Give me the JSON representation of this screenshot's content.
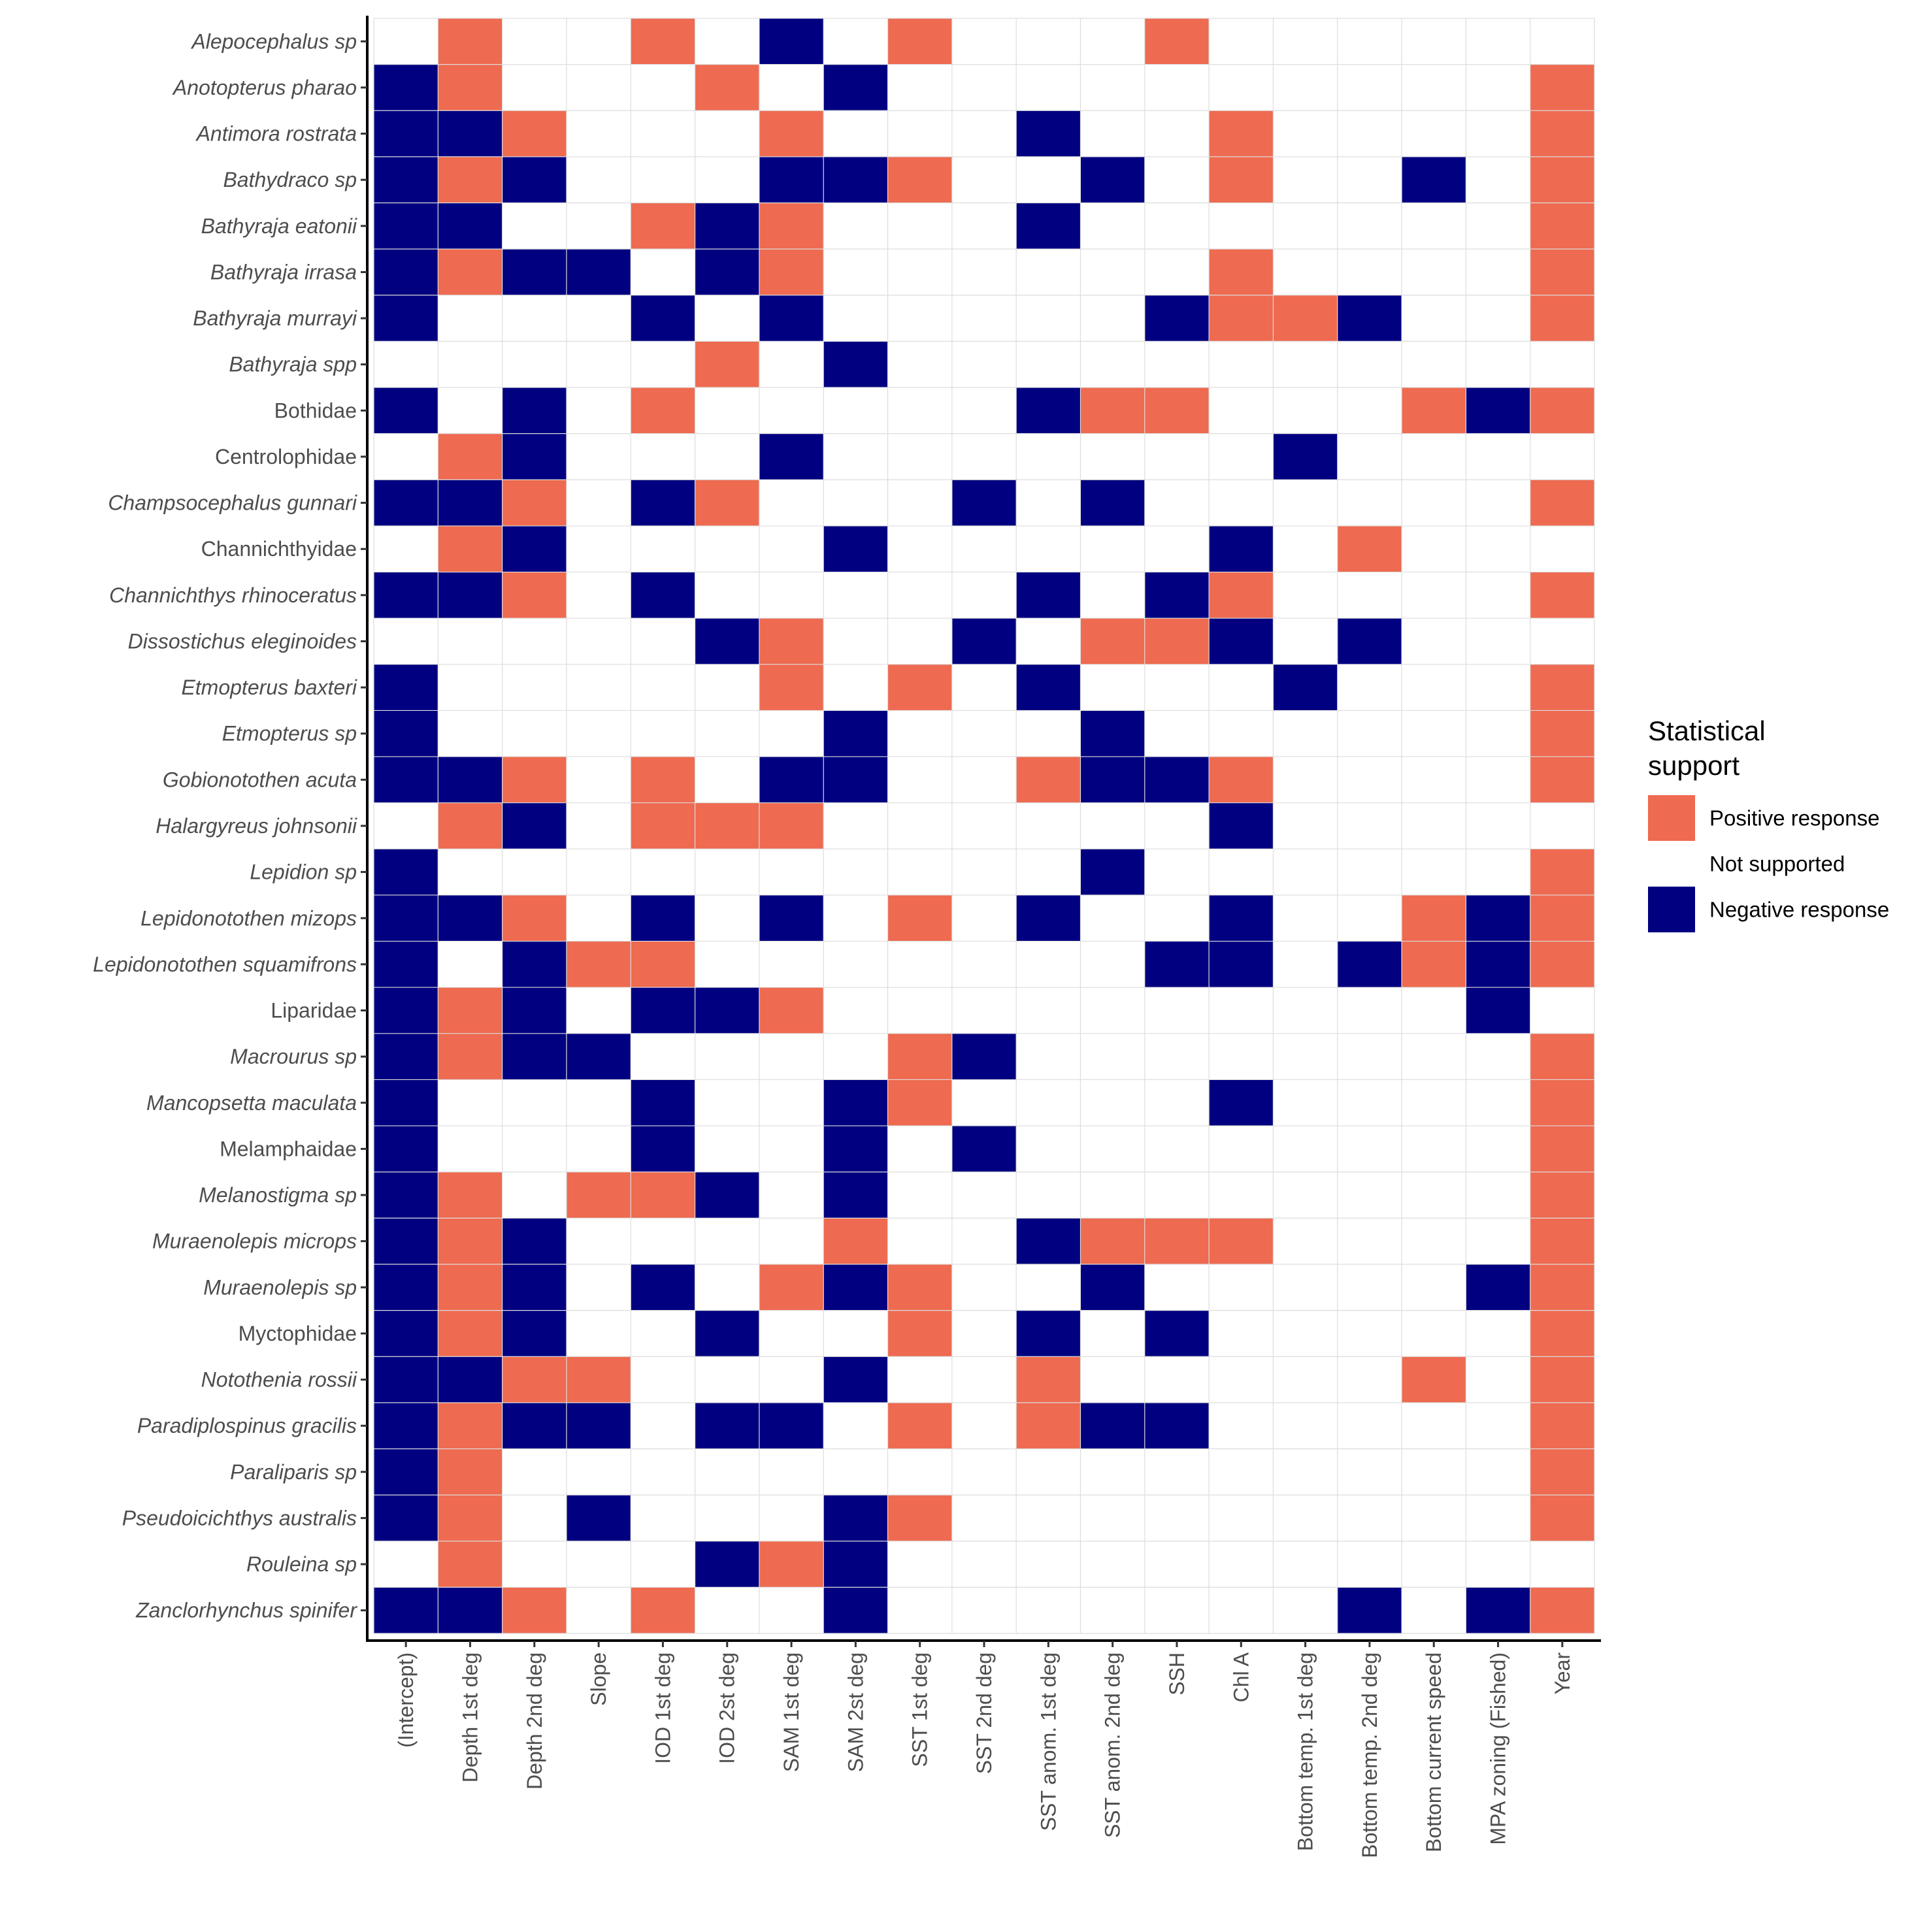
{
  "chart_data": {
    "type": "heatmap",
    "title": "",
    "xlabel": "",
    "ylabel": "",
    "x_categories": [
      "(Intercept)",
      "Depth 1st deg",
      "Depth 2nd deg",
      "Slope",
      "IOD 1st deg",
      "IOD 2st deg",
      "SAM 1st deg",
      "SAM 2st deg",
      "SST 1st deg",
      "SST 2nd deg",
      "SST anom. 1st deg",
      "SST anom. 2nd deg",
      "SSH",
      "Chl A",
      "Bottom temp. 1st deg",
      "Bottom temp. 2nd deg",
      "Bottom current speed",
      "MPA zoning (Fished)",
      "Year"
    ],
    "y_categories": [
      {
        "name": "Alepocephalus sp",
        "italic": true
      },
      {
        "name": "Anotopterus pharao",
        "italic": true
      },
      {
        "name": "Antimora rostrata",
        "italic": true
      },
      {
        "name": "Bathydraco sp",
        "italic": true
      },
      {
        "name": "Bathyraja eatonii",
        "italic": true
      },
      {
        "name": "Bathyraja irrasa",
        "italic": true
      },
      {
        "name": "Bathyraja murrayi",
        "italic": true
      },
      {
        "name": "Bathyraja spp",
        "italic": true
      },
      {
        "name": "Bothidae",
        "italic": false
      },
      {
        "name": "Centrolophidae",
        "italic": false
      },
      {
        "name": "Champsocephalus gunnari",
        "italic": true
      },
      {
        "name": "Channichthyidae",
        "italic": false
      },
      {
        "name": "Channichthys rhinoceratus",
        "italic": true
      },
      {
        "name": "Dissostichus eleginoides",
        "italic": true
      },
      {
        "name": "Etmopterus baxteri",
        "italic": true
      },
      {
        "name": "Etmopterus sp",
        "italic": true
      },
      {
        "name": "Gobionotothen acuta",
        "italic": true
      },
      {
        "name": "Halargyreus johnsonii",
        "italic": true
      },
      {
        "name": "Lepidion sp",
        "italic": true
      },
      {
        "name": "Lepidonotothen mizops",
        "italic": true
      },
      {
        "name": "Lepidonotothen squamifrons",
        "italic": true
      },
      {
        "name": "Liparidae",
        "italic": false
      },
      {
        "name": "Macrourus sp",
        "italic": true
      },
      {
        "name": "Mancopsetta maculata",
        "italic": true
      },
      {
        "name": "Melamphaidae",
        "italic": false
      },
      {
        "name": "Melanostigma sp",
        "italic": true
      },
      {
        "name": "Muraenolepis microps",
        "italic": true
      },
      {
        "name": "Muraenolepis sp",
        "italic": true
      },
      {
        "name": "Myctophidae",
        "italic": false
      },
      {
        "name": "Notothenia rossii",
        "italic": true
      },
      {
        "name": "Paradiplospinus gracilis",
        "italic": true
      },
      {
        "name": "Paraliparis sp",
        "italic": true
      },
      {
        "name": "Pseudoicichthys australis",
        "italic": true
      },
      {
        "name": "Rouleina sp",
        "italic": true
      },
      {
        "name": "Zanclorhynchus spinifer",
        "italic": true
      }
    ],
    "values_legend": {
      "1": "Positive response",
      "0": "Not supported",
      "-1": "Negative response"
    },
    "values": [
      [
        0,
        1,
        0,
        0,
        1,
        0,
        -1,
        0,
        1,
        0,
        0,
        0,
        1,
        0,
        0,
        0,
        0,
        0,
        0
      ],
      [
        -1,
        1,
        0,
        0,
        0,
        1,
        0,
        -1,
        0,
        0,
        0,
        0,
        0,
        0,
        0,
        0,
        0,
        0,
        1
      ],
      [
        -1,
        -1,
        1,
        0,
        0,
        0,
        1,
        0,
        0,
        0,
        -1,
        0,
        0,
        1,
        0,
        0,
        0,
        0,
        1
      ],
      [
        -1,
        1,
        -1,
        0,
        0,
        0,
        -1,
        -1,
        1,
        0,
        0,
        -1,
        0,
        1,
        0,
        0,
        -1,
        0,
        1
      ],
      [
        -1,
        -1,
        0,
        0,
        1,
        -1,
        1,
        0,
        0,
        0,
        -1,
        0,
        0,
        0,
        0,
        0,
        0,
        0,
        1
      ],
      [
        -1,
        1,
        -1,
        -1,
        0,
        -1,
        1,
        0,
        0,
        0,
        0,
        0,
        0,
        1,
        0,
        0,
        0,
        0,
        1
      ],
      [
        -1,
        0,
        0,
        0,
        -1,
        0,
        -1,
        0,
        0,
        0,
        0,
        0,
        -1,
        1,
        1,
        -1,
        0,
        0,
        1
      ],
      [
        0,
        0,
        0,
        0,
        0,
        1,
        0,
        -1,
        0,
        0,
        0,
        0,
        0,
        0,
        0,
        0,
        0,
        0,
        0
      ],
      [
        -1,
        0,
        -1,
        0,
        1,
        0,
        0,
        0,
        0,
        0,
        -1,
        1,
        1,
        0,
        0,
        0,
        1,
        -1,
        1
      ],
      [
        0,
        1,
        -1,
        0,
        0,
        0,
        -1,
        0,
        0,
        0,
        0,
        0,
        0,
        0,
        -1,
        0,
        0,
        0,
        0
      ],
      [
        -1,
        -1,
        1,
        0,
        -1,
        1,
        0,
        0,
        0,
        -1,
        0,
        -1,
        0,
        0,
        0,
        0,
        0,
        0,
        1
      ],
      [
        0,
        1,
        -1,
        0,
        0,
        0,
        0,
        -1,
        0,
        0,
        0,
        0,
        0,
        -1,
        0,
        1,
        0,
        0,
        0
      ],
      [
        -1,
        -1,
        1,
        0,
        -1,
        0,
        0,
        0,
        0,
        0,
        -1,
        0,
        -1,
        1,
        0,
        0,
        0,
        0,
        1
      ],
      [
        0,
        0,
        0,
        0,
        0,
        -1,
        1,
        0,
        0,
        -1,
        0,
        1,
        1,
        -1,
        0,
        -1,
        0,
        0,
        0
      ],
      [
        -1,
        0,
        0,
        0,
        0,
        0,
        1,
        0,
        1,
        0,
        -1,
        0,
        0,
        0,
        -1,
        0,
        0,
        0,
        1
      ],
      [
        -1,
        0,
        0,
        0,
        0,
        0,
        0,
        -1,
        0,
        0,
        0,
        -1,
        0,
        0,
        0,
        0,
        0,
        0,
        1
      ],
      [
        -1,
        -1,
        1,
        0,
        1,
        0,
        -1,
        -1,
        0,
        0,
        1,
        -1,
        -1,
        1,
        0,
        0,
        0,
        0,
        1
      ],
      [
        0,
        1,
        -1,
        0,
        1,
        1,
        1,
        0,
        0,
        0,
        0,
        0,
        0,
        -1,
        0,
        0,
        0,
        0,
        0
      ],
      [
        -1,
        0,
        0,
        0,
        0,
        0,
        0,
        0,
        0,
        0,
        0,
        -1,
        0,
        0,
        0,
        0,
        0,
        0,
        1
      ],
      [
        -1,
        -1,
        1,
        0,
        -1,
        0,
        -1,
        0,
        1,
        0,
        -1,
        0,
        0,
        -1,
        0,
        0,
        1,
        -1,
        1
      ],
      [
        -1,
        0,
        -1,
        1,
        1,
        0,
        0,
        0,
        0,
        0,
        0,
        0,
        -1,
        -1,
        0,
        -1,
        1,
        -1,
        1
      ],
      [
        -1,
        1,
        -1,
        0,
        -1,
        -1,
        1,
        0,
        0,
        0,
        0,
        0,
        0,
        0,
        0,
        0,
        0,
        -1,
        0
      ],
      [
        -1,
        1,
        -1,
        -1,
        0,
        0,
        0,
        0,
        1,
        -1,
        0,
        0,
        0,
        0,
        0,
        0,
        0,
        0,
        1
      ],
      [
        -1,
        0,
        0,
        0,
        -1,
        0,
        0,
        -1,
        1,
        0,
        0,
        0,
        0,
        -1,
        0,
        0,
        0,
        0,
        1
      ],
      [
        -1,
        0,
        0,
        0,
        -1,
        0,
        0,
        -1,
        0,
        -1,
        0,
        0,
        0,
        0,
        0,
        0,
        0,
        0,
        1
      ],
      [
        -1,
        1,
        0,
        1,
        1,
        -1,
        0,
        -1,
        0,
        0,
        0,
        0,
        0,
        0,
        0,
        0,
        0,
        0,
        1
      ],
      [
        -1,
        1,
        -1,
        0,
        0,
        0,
        0,
        1,
        0,
        0,
        -1,
        1,
        1,
        1,
        0,
        0,
        0,
        0,
        1
      ],
      [
        -1,
        1,
        -1,
        0,
        -1,
        0,
        1,
        -1,
        1,
        0,
        0,
        -1,
        0,
        0,
        0,
        0,
        0,
        -1,
        1
      ],
      [
        -1,
        1,
        -1,
        0,
        0,
        -1,
        0,
        0,
        1,
        0,
        -1,
        0,
        -1,
        0,
        0,
        0,
        0,
        0,
        1
      ],
      [
        -1,
        -1,
        1,
        1,
        0,
        0,
        0,
        -1,
        0,
        0,
        1,
        0,
        0,
        0,
        0,
        0,
        1,
        0,
        1
      ],
      [
        -1,
        1,
        -1,
        -1,
        0,
        -1,
        -1,
        0,
        1,
        0,
        1,
        -1,
        -1,
        0,
        0,
        0,
        0,
        0,
        1
      ],
      [
        -1,
        1,
        0,
        0,
        0,
        0,
        0,
        0,
        0,
        0,
        0,
        0,
        0,
        0,
        0,
        0,
        0,
        0,
        1
      ],
      [
        -1,
        1,
        0,
        -1,
        0,
        0,
        0,
        -1,
        1,
        0,
        0,
        0,
        0,
        0,
        0,
        0,
        0,
        0,
        1
      ],
      [
        0,
        1,
        0,
        0,
        0,
        -1,
        1,
        -1,
        0,
        0,
        0,
        0,
        0,
        0,
        0,
        0,
        0,
        0,
        0
      ],
      [
        -1,
        -1,
        1,
        0,
        1,
        0,
        0,
        -1,
        0,
        0,
        0,
        0,
        0,
        0,
        0,
        -1,
        0,
        -1,
        1
      ]
    ],
    "legend": {
      "title_lines": [
        "Statistical",
        "support"
      ],
      "placement": "right",
      "entries": [
        {
          "key": "1",
          "label": "Positive response",
          "color": "#EE6A50"
        },
        {
          "key": "0",
          "label": "Not supported",
          "color": "#FFFFFF"
        },
        {
          "key": "-1",
          "label": "Negative response",
          "color": "#000080"
        }
      ]
    },
    "grid": true,
    "colors": {
      "positive": "#EE6A50",
      "neutral": "#FFFFFF",
      "negative": "#000080",
      "grid": "#DDDDDD",
      "axis": "#000000",
      "tick_text": "#4D4D4D"
    }
  }
}
